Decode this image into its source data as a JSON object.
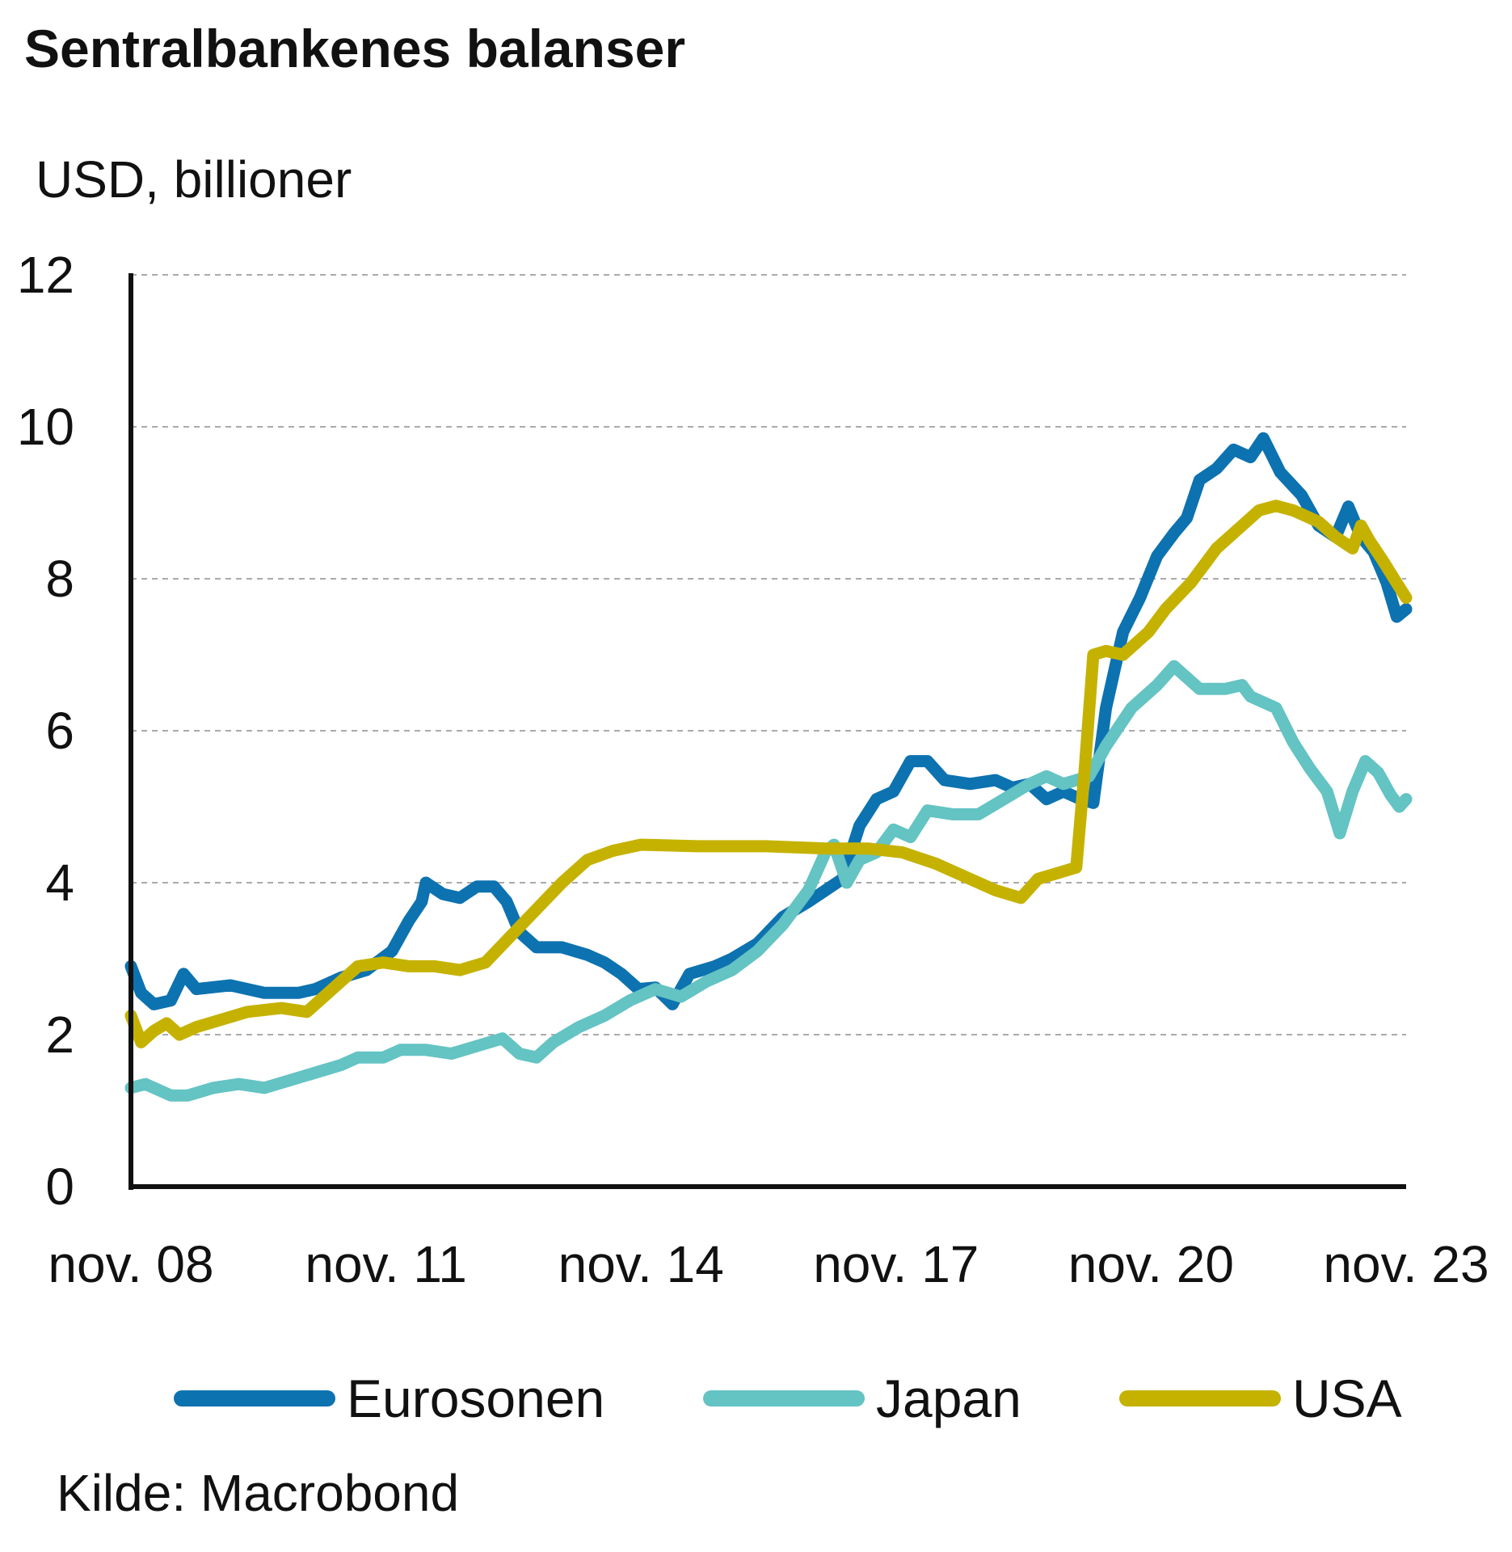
{
  "chart_data": {
    "type": "line",
    "title": "Sentralbankenes balanser",
    "ylabel": "USD, billioner",
    "xlabel": "",
    "ylim": [
      0,
      12
    ],
    "yticks": [
      0,
      2,
      4,
      6,
      8,
      10,
      12
    ],
    "xlim": [
      2008.83,
      2023.83
    ],
    "xticks": [
      {
        "x": 2008.83,
        "label": "nov. 08"
      },
      {
        "x": 2011.83,
        "label": "nov. 11"
      },
      {
        "x": 2014.83,
        "label": "nov. 14"
      },
      {
        "x": 2017.83,
        "label": "nov. 17"
      },
      {
        "x": 2020.83,
        "label": "nov. 20"
      },
      {
        "x": 2023.83,
        "label": "nov. 23"
      }
    ],
    "grid": "horizontal dashed",
    "legend_position": "bottom",
    "source": "Kilde: Macrobond",
    "series": [
      {
        "name": "Eurosonen",
        "color": "#0D72B0",
        "points": [
          [
            2008.83,
            2.9
          ],
          [
            2008.95,
            2.55
          ],
          [
            2009.1,
            2.4
          ],
          [
            2009.3,
            2.45
          ],
          [
            2009.45,
            2.8
          ],
          [
            2009.6,
            2.6
          ],
          [
            2010.0,
            2.65
          ],
          [
            2010.4,
            2.55
          ],
          [
            2010.8,
            2.55
          ],
          [
            2011.0,
            2.6
          ],
          [
            2011.3,
            2.75
          ],
          [
            2011.6,
            2.85
          ],
          [
            2011.9,
            3.1
          ],
          [
            2012.1,
            3.5
          ],
          [
            2012.25,
            3.75
          ],
          [
            2012.3,
            4.0
          ],
          [
            2012.5,
            3.85
          ],
          [
            2012.7,
            3.8
          ],
          [
            2012.9,
            3.95
          ],
          [
            2013.1,
            3.95
          ],
          [
            2013.25,
            3.75
          ],
          [
            2013.4,
            3.35
          ],
          [
            2013.6,
            3.15
          ],
          [
            2013.9,
            3.15
          ],
          [
            2014.2,
            3.05
          ],
          [
            2014.4,
            2.95
          ],
          [
            2014.6,
            2.8
          ],
          [
            2014.8,
            2.6
          ],
          [
            2015.0,
            2.62
          ],
          [
            2015.2,
            2.4
          ],
          [
            2015.4,
            2.8
          ],
          [
            2015.7,
            2.9
          ],
          [
            2015.9,
            3.0
          ],
          [
            2016.2,
            3.2
          ],
          [
            2016.5,
            3.55
          ],
          [
            2016.8,
            3.75
          ],
          [
            2017.0,
            3.9
          ],
          [
            2017.2,
            4.05
          ],
          [
            2017.4,
            4.75
          ],
          [
            2017.6,
            5.1
          ],
          [
            2017.8,
            5.2
          ],
          [
            2018.0,
            5.6
          ],
          [
            2018.2,
            5.6
          ],
          [
            2018.4,
            5.35
          ],
          [
            2018.7,
            5.3
          ],
          [
            2019.0,
            5.35
          ],
          [
            2019.2,
            5.25
          ],
          [
            2019.4,
            5.3
          ],
          [
            2019.6,
            5.1
          ],
          [
            2019.8,
            5.2
          ],
          [
            2020.0,
            5.1
          ],
          [
            2020.15,
            5.05
          ],
          [
            2020.3,
            6.3
          ],
          [
            2020.5,
            7.3
          ],
          [
            2020.7,
            7.75
          ],
          [
            2020.9,
            8.3
          ],
          [
            2021.1,
            8.6
          ],
          [
            2021.25,
            8.8
          ],
          [
            2021.4,
            9.3
          ],
          [
            2021.6,
            9.45
          ],
          [
            2021.8,
            9.7
          ],
          [
            2022.0,
            9.6
          ],
          [
            2022.15,
            9.85
          ],
          [
            2022.35,
            9.4
          ],
          [
            2022.6,
            9.1
          ],
          [
            2022.8,
            8.7
          ],
          [
            2023.0,
            8.55
          ],
          [
            2023.15,
            8.95
          ],
          [
            2023.3,
            8.55
          ],
          [
            2023.45,
            8.35
          ],
          [
            2023.6,
            7.95
          ],
          [
            2023.72,
            7.5
          ],
          [
            2023.83,
            7.6
          ]
        ]
      },
      {
        "name": "Japan",
        "color": "#64C3C3",
        "points": [
          [
            2008.83,
            1.3
          ],
          [
            2009.0,
            1.35
          ],
          [
            2009.3,
            1.2
          ],
          [
            2009.5,
            1.2
          ],
          [
            2009.8,
            1.3
          ],
          [
            2010.1,
            1.35
          ],
          [
            2010.4,
            1.3
          ],
          [
            2010.7,
            1.4
          ],
          [
            2011.0,
            1.5
          ],
          [
            2011.3,
            1.6
          ],
          [
            2011.5,
            1.7
          ],
          [
            2011.8,
            1.7
          ],
          [
            2012.0,
            1.8
          ],
          [
            2012.3,
            1.8
          ],
          [
            2012.6,
            1.75
          ],
          [
            2012.9,
            1.85
          ],
          [
            2013.2,
            1.95
          ],
          [
            2013.4,
            1.75
          ],
          [
            2013.6,
            1.7
          ],
          [
            2013.8,
            1.9
          ],
          [
            2014.1,
            2.1
          ],
          [
            2014.4,
            2.25
          ],
          [
            2014.7,
            2.45
          ],
          [
            2015.0,
            2.6
          ],
          [
            2015.3,
            2.5
          ],
          [
            2015.6,
            2.7
          ],
          [
            2015.9,
            2.85
          ],
          [
            2016.2,
            3.1
          ],
          [
            2016.5,
            3.45
          ],
          [
            2016.8,
            3.9
          ],
          [
            2017.0,
            4.4
          ],
          [
            2017.1,
            4.5
          ],
          [
            2017.25,
            4.0
          ],
          [
            2017.4,
            4.3
          ],
          [
            2017.6,
            4.4
          ],
          [
            2017.8,
            4.7
          ],
          [
            2018.0,
            4.6
          ],
          [
            2018.2,
            4.95
          ],
          [
            2018.5,
            4.9
          ],
          [
            2018.8,
            4.9
          ],
          [
            2019.1,
            5.1
          ],
          [
            2019.4,
            5.3
          ],
          [
            2019.6,
            5.4
          ],
          [
            2019.8,
            5.3
          ],
          [
            2020.1,
            5.4
          ],
          [
            2020.3,
            5.8
          ],
          [
            2020.6,
            6.3
          ],
          [
            2020.9,
            6.6
          ],
          [
            2021.1,
            6.85
          ],
          [
            2021.4,
            6.55
          ],
          [
            2021.7,
            6.55
          ],
          [
            2021.9,
            6.6
          ],
          [
            2022.0,
            6.45
          ],
          [
            2022.3,
            6.3
          ],
          [
            2022.5,
            5.85
          ],
          [
            2022.7,
            5.5
          ],
          [
            2022.9,
            5.2
          ],
          [
            2023.05,
            4.65
          ],
          [
            2023.2,
            5.2
          ],
          [
            2023.35,
            5.6
          ],
          [
            2023.5,
            5.45
          ],
          [
            2023.65,
            5.15
          ],
          [
            2023.75,
            5.0
          ],
          [
            2023.83,
            5.1
          ]
        ]
      },
      {
        "name": "USA",
        "color": "#C5B200",
        "points": [
          [
            2008.83,
            2.25
          ],
          [
            2008.95,
            1.9
          ],
          [
            2009.1,
            2.05
          ],
          [
            2009.25,
            2.15
          ],
          [
            2009.4,
            2.0
          ],
          [
            2009.6,
            2.1
          ],
          [
            2009.9,
            2.2
          ],
          [
            2010.2,
            2.3
          ],
          [
            2010.6,
            2.35
          ],
          [
            2010.9,
            2.3
          ],
          [
            2011.2,
            2.6
          ],
          [
            2011.5,
            2.9
          ],
          [
            2011.8,
            2.95
          ],
          [
            2012.1,
            2.9
          ],
          [
            2012.4,
            2.9
          ],
          [
            2012.7,
            2.85
          ],
          [
            2013.0,
            2.95
          ],
          [
            2013.3,
            3.3
          ],
          [
            2013.6,
            3.65
          ],
          [
            2013.9,
            4.0
          ],
          [
            2014.2,
            4.3
          ],
          [
            2014.5,
            4.42
          ],
          [
            2014.83,
            4.5
          ],
          [
            2015.5,
            4.48
          ],
          [
            2016.3,
            4.48
          ],
          [
            2017.0,
            4.45
          ],
          [
            2017.5,
            4.45
          ],
          [
            2017.9,
            4.4
          ],
          [
            2018.3,
            4.25
          ],
          [
            2018.7,
            4.05
          ],
          [
            2019.0,
            3.9
          ],
          [
            2019.3,
            3.8
          ],
          [
            2019.5,
            4.05
          ],
          [
            2019.8,
            4.15
          ],
          [
            2019.95,
            4.2
          ],
          [
            2020.05,
            5.5
          ],
          [
            2020.15,
            7.0
          ],
          [
            2020.3,
            7.05
          ],
          [
            2020.5,
            7.0
          ],
          [
            2020.8,
            7.3
          ],
          [
            2021.0,
            7.6
          ],
          [
            2021.3,
            7.95
          ],
          [
            2021.6,
            8.4
          ],
          [
            2021.9,
            8.7
          ],
          [
            2022.1,
            8.9
          ],
          [
            2022.3,
            8.96
          ],
          [
            2022.5,
            8.9
          ],
          [
            2022.8,
            8.75
          ],
          [
            2023.0,
            8.55
          ],
          [
            2023.2,
            8.4
          ],
          [
            2023.3,
            8.7
          ],
          [
            2023.4,
            8.5
          ],
          [
            2023.55,
            8.25
          ],
          [
            2023.7,
            7.98
          ],
          [
            2023.83,
            7.75
          ]
        ]
      }
    ]
  }
}
